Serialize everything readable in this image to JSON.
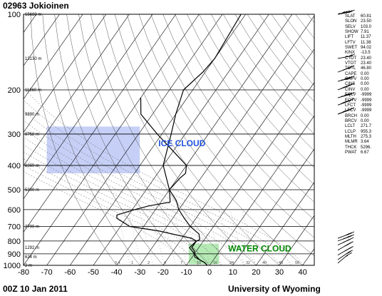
{
  "station": "02963  Jokioinen",
  "timestamp": "00Z 10 Jan 2011",
  "source": "University of Wyoming",
  "chart_data": {
    "type": "line",
    "title": "02963  Jokioinen",
    "xlabel": "",
    "ylabel": "",
    "x_axis": {
      "ticks": [
        -80,
        -70,
        -60,
        -50,
        -40,
        -30,
        -20,
        -10,
        0,
        10,
        20,
        30,
        40
      ],
      "xlim": [
        -80,
        45
      ]
    },
    "y_axis": {
      "type": "log",
      "inverted": true,
      "ticks": [
        100,
        200,
        300,
        400,
        500,
        600,
        700,
        800,
        900,
        1000
      ],
      "ylim": [
        100,
        1000
      ]
    },
    "height_labels": [
      {
        "p": 100,
        "label": "15680 m"
      },
      {
        "p": 150,
        "label": "13130 m"
      },
      {
        "p": 200,
        "label": "11360 m"
      },
      {
        "p": 250,
        "label": "9890 m"
      },
      {
        "p": 300,
        "label": "8750 m"
      },
      {
        "p": 400,
        "label": "6960 m"
      },
      {
        "p": 500,
        "label": "5300 m"
      },
      {
        "p": 700,
        "label": "2790 m"
      },
      {
        "p": 850,
        "label": "1292 m"
      },
      {
        "p": 925,
        "label": "624 m"
      },
      {
        "p": 1000,
        "label": "2 m"
      }
    ],
    "bottom_scale_labels": [
      "0.4",
      "1",
      "2",
      "4",
      "7",
      "10",
      "16",
      "24",
      "32",
      "40",
      "48",
      "56"
    ],
    "series": [
      {
        "values": [
          [
            1000,
            -1
          ],
          [
            975,
            -3
          ],
          [
            950,
            -6
          ],
          [
            925,
            -8
          ],
          [
            900,
            -10
          ],
          [
            875,
            -11
          ],
          [
            850,
            -13
          ],
          [
            800,
            -13
          ],
          [
            790,
            -12
          ],
          [
            750,
            -14
          ],
          [
            700,
            -20
          ],
          [
            650,
            -25
          ],
          [
            600,
            -30
          ],
          [
            550,
            -34
          ],
          [
            500,
            -40
          ],
          [
            400,
            -50
          ],
          [
            300,
            -56
          ],
          [
            250,
            -60
          ],
          [
            200,
            -64
          ],
          [
            170,
            -61
          ],
          [
            150,
            -60
          ],
          [
            100,
            -62
          ]
        ]
      },
      {
        "values": [
          [
            1000,
            -1
          ],
          [
            975,
            -3
          ],
          [
            950,
            -6
          ],
          [
            925,
            -9
          ],
          [
            900,
            -10
          ],
          [
            850,
            -14
          ],
          [
            800,
            -13
          ],
          [
            780,
            -16
          ],
          [
            730,
            -32
          ],
          [
            700,
            -46
          ],
          [
            650,
            -54
          ],
          [
            630,
            -55
          ],
          [
            600,
            -49
          ],
          [
            580,
            -44
          ],
          [
            560,
            -36
          ],
          [
            500,
            -40
          ],
          [
            450,
            -39
          ],
          [
            430,
            -38
          ],
          [
            400,
            -40
          ],
          [
            300,
            -62
          ],
          [
            250,
            -75
          ],
          [
            215,
            -80
          ]
        ]
      }
    ],
    "annotations": [
      {
        "text": "ICE CLOUD",
        "color": "#2255dd",
        "fill": "#bcc8f6",
        "t_range": [
          -70,
          -30
        ],
        "p_range": [
          280,
          430
        ]
      },
      {
        "text": "WATER CLOUD",
        "color": "#008800",
        "fill": "#a8e6a8",
        "t_range": [
          -9,
          4
        ],
        "p_range": [
          820,
          990
        ]
      }
    ],
    "wind_barbs": [
      {
        "p": 100,
        "dir": 260,
        "kt": 55
      },
      {
        "p": 150,
        "dir": 260,
        "kt": 25
      },
      {
        "p": 170,
        "dir": 250,
        "kt": 35
      },
      {
        "p": 185,
        "dir": 255,
        "kt": 45
      },
      {
        "p": 200,
        "dir": 250,
        "kt": 50
      },
      {
        "p": 215,
        "dir": 255,
        "kt": 45
      },
      {
        "p": 230,
        "dir": 250,
        "kt": 50
      },
      {
        "p": 250,
        "dir": 250,
        "kt": 55
      },
      {
        "p": 780,
        "dir": 250,
        "kt": 30
      },
      {
        "p": 800,
        "dir": 250,
        "kt": 35
      },
      {
        "p": 830,
        "dir": 245,
        "kt": 35
      },
      {
        "p": 870,
        "dir": 240,
        "kt": 30
      },
      {
        "p": 910,
        "dir": 240,
        "kt": 25
      },
      {
        "p": 950,
        "dir": 235,
        "kt": 20
      },
      {
        "p": 980,
        "dir": 230,
        "kt": 15
      }
    ],
    "grid": true
  },
  "indices": [
    {
      "name": "SLAT",
      "value": "60.81"
    },
    {
      "name": "SLON",
      "value": "23.50"
    },
    {
      "name": "SELV",
      "value": "103.0"
    },
    {
      "name": "SHOW",
      "value": "7.91"
    },
    {
      "name": "LIFT",
      "value": "11.37"
    },
    {
      "name": "LFTV",
      "value": "11.38"
    },
    {
      "name": "SWET",
      "value": "94.02"
    },
    {
      "name": "KINX",
      "value": "-13.5"
    },
    {
      "name": "CTOT",
      "value": "23.40"
    },
    {
      "name": "VTOT",
      "value": "23.40"
    },
    {
      "name": "TOTL",
      "value": "46.80"
    },
    {
      "name": "CAPE",
      "value": "0.00"
    },
    {
      "name": "CAPV",
      "value": "0.00"
    },
    {
      "name": "CINS",
      "value": "0.00"
    },
    {
      "name": "CINV",
      "value": "0.00"
    },
    {
      "name": "EQLV",
      "value": "-9999"
    },
    {
      "name": "EQTV",
      "value": "-9999"
    },
    {
      "name": "LFCT",
      "value": "-9999"
    },
    {
      "name": "LFCV",
      "value": "-9999"
    },
    {
      "name": "BRCH",
      "value": "0.00"
    },
    {
      "name": "BRCV",
      "value": "0.00"
    },
    {
      "name": "LCLT",
      "value": "271.7"
    },
    {
      "name": "LCLP",
      "value": "955.3"
    },
    {
      "name": "MLTH",
      "value": "275.3"
    },
    {
      "name": "MLMR",
      "value": "3.64"
    },
    {
      "name": "THCK",
      "value": "5296."
    },
    {
      "name": "PWAT",
      "value": "6.67"
    }
  ]
}
